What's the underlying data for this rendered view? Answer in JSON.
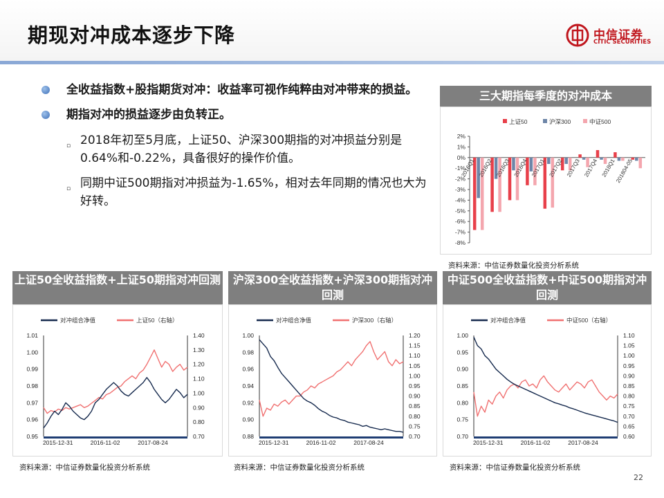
{
  "page": {
    "title": "期现对冲成本逐步下降",
    "page_number": "22"
  },
  "logo": {
    "cn": "中信证券",
    "en": "CITIC SECURITIES",
    "brand_color": "#c0161d"
  },
  "bullets": [
    {
      "level": 1,
      "text": "全收益指数+股指期货对冲：收益率可视作纯粹由对冲带来的损益。"
    },
    {
      "level": 1,
      "text": "期指对冲的损益逐步由负转正。"
    },
    {
      "level": 2,
      "text": "2018年初至5月底，上证50、沪深300期指的对冲损益分别是0.64%和-0.22%，具备很好的操作价值。"
    },
    {
      "level": 2,
      "text": "同期中证500期指对冲损益为-1.65%，相对去年同期的情况也大为好转。"
    }
  ],
  "panels": {
    "top_right": {
      "title": "三大期指每季度的对冲成本",
      "source": "资料来源：中信证券数量化投资分析系统"
    },
    "bl": {
      "title": "上证50全收益指数+上证50期指对冲回测",
      "source": "资料来源：中信证券数量化投资分析系统"
    },
    "bm": {
      "title": "沪深300全收益指数+沪深300期指对冲回测",
      "source": "资料来源：中信证券数量化投资分析系统"
    },
    "br": {
      "title": "中证500全收益指数+中证500期指对冲回测",
      "source": "资料来源：中信证券数量化投资分析系统"
    }
  },
  "chart_data": [
    {
      "type": "bar",
      "title": "三大期指每季度的对冲成本",
      "categories": [
        "2016Q1",
        "2016Q2",
        "2016Q3",
        "2016Q4",
        "2017Q1",
        "2017Q2",
        "2017Q3",
        "2017Q4",
        "2018Q1",
        "201804-05"
      ],
      "series": [
        {
          "name": "上证50",
          "color": "#e8404a",
          "values": [
            -6.8,
            -5.1,
            -4.0,
            -2.6,
            -4.8,
            -1.2,
            0.3,
            0.7,
            0.5,
            -0.2
          ]
        },
        {
          "name": "沪深300",
          "color": "#6e86a8",
          "values": [
            -3.8,
            -2.0,
            -1.2,
            -1.3,
            -0.6,
            -0.6,
            -0.2,
            -0.2,
            -0.3,
            -0.3
          ]
        },
        {
          "name": "中证500",
          "color": "#f4a6ae",
          "values": [
            -6.8,
            -5.1,
            -4.0,
            -2.6,
            -4.7,
            -1.2,
            -0.9,
            -0.6,
            -0.3,
            -1.0
          ]
        }
      ],
      "y_ticks": [
        "2%",
        "1%",
        "0%",
        "-1%",
        "-2%",
        "-3%",
        "-4%",
        "-5%",
        "-6%",
        "-7%",
        "-8%"
      ],
      "ylim": [
        -8,
        2
      ],
      "legend": "top"
    },
    {
      "type": "line",
      "x_ticks": [
        "2015-12-31",
        "2016-11-02",
        "2017-08-24"
      ],
      "left_ticks": [
        "1.01",
        "1.00",
        "0.99",
        "0.98",
        "0.97",
        "0.96",
        "0.95"
      ],
      "right_ticks": [
        "1.40",
        "1.30",
        "1.20",
        "1.10",
        "1.00",
        "0.90",
        "0.80",
        "0.70"
      ],
      "left_ylim": [
        0.95,
        1.01
      ],
      "right_ylim": [
        0.7,
        1.4
      ],
      "series": [
        {
          "name": "对冲组合净值",
          "axis": "left",
          "color": "#15294d",
          "values": [
            0.955,
            0.958,
            0.962,
            0.965,
            0.963,
            0.966,
            0.97,
            0.968,
            0.965,
            0.963,
            0.961,
            0.96,
            0.962,
            0.965,
            0.97,
            0.972,
            0.975,
            0.978,
            0.98,
            0.982,
            0.98,
            0.977,
            0.975,
            0.974,
            0.976,
            0.978,
            0.98,
            0.982,
            0.985,
            0.982,
            0.978,
            0.975,
            0.972,
            0.97,
            0.972,
            0.975,
            0.978,
            0.976,
            0.973,
            0.975
          ]
        },
        {
          "name": "上证50（右轴）",
          "axis": "right",
          "color": "#f07070",
          "values": [
            0.9,
            0.86,
            0.88,
            0.87,
            0.89,
            0.88,
            0.9,
            0.89,
            0.9,
            0.91,
            0.92,
            0.9,
            0.91,
            0.93,
            0.95,
            0.97,
            0.96,
            0.99,
            1.0,
            1.02,
            1.04,
            1.05,
            1.08,
            1.1,
            1.12,
            1.1,
            1.14,
            1.16,
            1.2,
            1.25,
            1.3,
            1.24,
            1.18,
            1.22,
            1.2,
            1.15,
            1.18,
            1.2,
            1.16,
            1.18
          ]
        }
      ],
      "legend": "top"
    },
    {
      "type": "line",
      "x_ticks": [
        "2015-12-31",
        "2016-11-02",
        "2017-08-24"
      ],
      "left_ticks": [
        "1.00",
        "0.98",
        "0.96",
        "0.94",
        "0.92",
        "0.90",
        "0.88"
      ],
      "right_ticks": [
        "1.20",
        "1.15",
        "1.10",
        "1.05",
        "1.00",
        "0.95",
        "0.90",
        "0.85",
        "0.80",
        "0.75",
        "0.70"
      ],
      "left_ylim": [
        0.88,
        1.0
      ],
      "right_ylim": [
        0.7,
        1.2
      ],
      "series": [
        {
          "name": "对冲组合净值",
          "axis": "left",
          "color": "#15294d",
          "values": [
            0.995,
            0.99,
            0.985,
            0.975,
            0.97,
            0.962,
            0.955,
            0.95,
            0.945,
            0.94,
            0.935,
            0.93,
            0.925,
            0.922,
            0.92,
            0.917,
            0.913,
            0.91,
            0.908,
            0.905,
            0.903,
            0.902,
            0.9,
            0.899,
            0.897,
            0.896,
            0.895,
            0.894,
            0.892,
            0.893,
            0.891,
            0.89,
            0.889,
            0.888,
            0.889,
            0.888,
            0.887,
            0.886,
            0.886,
            0.885
          ]
        },
        {
          "name": "沪深300（右轴）",
          "axis": "right",
          "color": "#f07070",
          "values": [
            0.88,
            0.8,
            0.84,
            0.83,
            0.86,
            0.85,
            0.87,
            0.88,
            0.86,
            0.88,
            0.9,
            0.9,
            0.92,
            0.93,
            0.95,
            0.94,
            0.96,
            0.97,
            0.98,
            0.99,
            1.0,
            1.02,
            1.03,
            1.05,
            1.07,
            1.05,
            1.08,
            1.1,
            1.12,
            1.15,
            1.17,
            1.12,
            1.08,
            1.1,
            1.12,
            1.07,
            1.05,
            1.08,
            1.06,
            1.07
          ]
        }
      ],
      "legend": "top"
    },
    {
      "type": "line",
      "x_ticks": [
        "2015-12-31",
        "2016-11-02",
        "2017-08-24"
      ],
      "left_ticks": [
        "1.00",
        "0.95",
        "0.90",
        "0.85",
        "0.80",
        "0.75",
        "0.70"
      ],
      "right_ticks": [
        "1.10",
        "1.05",
        "1.00",
        "0.95",
        "0.90",
        "0.85",
        "0.80",
        "0.75",
        "0.70",
        "0.65",
        "0.60"
      ],
      "left_ylim": [
        0.7,
        1.0
      ],
      "right_ylim": [
        0.6,
        1.1
      ],
      "series": [
        {
          "name": "对冲组合净值",
          "axis": "left",
          "color": "#15294d",
          "values": [
            0.995,
            0.97,
            0.96,
            0.94,
            0.93,
            0.915,
            0.9,
            0.89,
            0.88,
            0.87,
            0.862,
            0.855,
            0.85,
            0.845,
            0.84,
            0.835,
            0.83,
            0.825,
            0.82,
            0.815,
            0.81,
            0.805,
            0.8,
            0.797,
            0.793,
            0.79,
            0.785,
            0.782,
            0.778,
            0.774,
            0.77,
            0.767,
            0.764,
            0.761,
            0.758,
            0.755,
            0.752,
            0.749,
            0.746,
            0.742
          ]
        },
        {
          "name": "中证500（右轴）",
          "axis": "right",
          "color": "#f07070",
          "values": [
            0.82,
            0.7,
            0.75,
            0.72,
            0.78,
            0.76,
            0.8,
            0.82,
            0.79,
            0.83,
            0.85,
            0.86,
            0.84,
            0.87,
            0.88,
            0.85,
            0.86,
            0.84,
            0.88,
            0.9,
            0.87,
            0.85,
            0.83,
            0.82,
            0.84,
            0.86,
            0.83,
            0.85,
            0.87,
            0.86,
            0.84,
            0.87,
            0.88,
            0.85,
            0.82,
            0.8,
            0.78,
            0.8,
            0.79,
            0.81
          ]
        }
      ],
      "legend": "top"
    }
  ]
}
